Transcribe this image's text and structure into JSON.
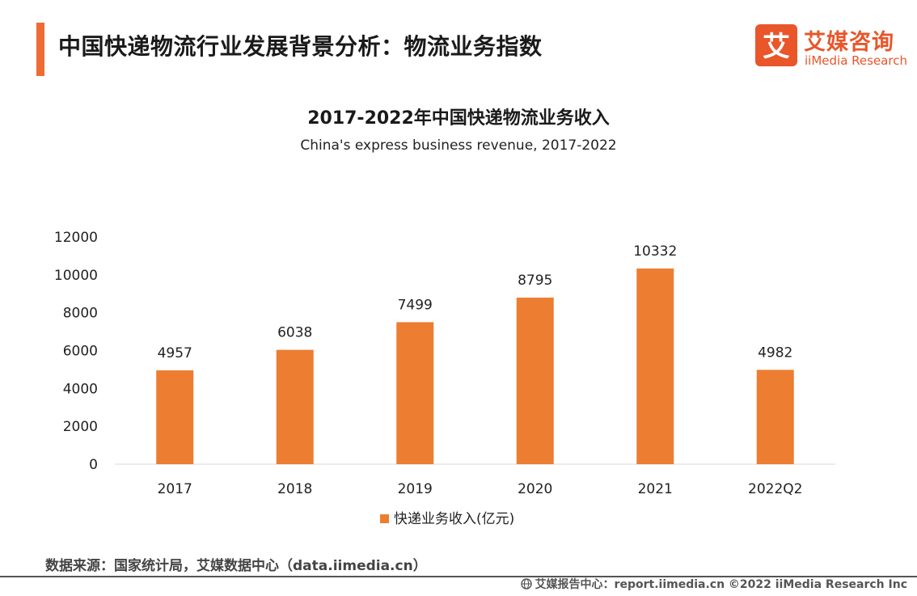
{
  "header": {
    "title": "中国快递物流行业发展背景分析：物流业务指数"
  },
  "logo": {
    "mark_char": "艾",
    "cn": "艾媒咨询",
    "en": "iiMedia Research",
    "color": "#e8562a"
  },
  "chart_data": {
    "type": "bar",
    "title": "2017-2022年中国快递物流业务收入",
    "subtitle": "China's express business revenue, 2017-2022",
    "categories": [
      "2017",
      "2018",
      "2019",
      "2020",
      "2021",
      "2022Q2"
    ],
    "series": [
      {
        "name": "快递业务收入(亿元)",
        "values": [
          4957,
          6038,
          7499,
          8795,
          10332,
          4982
        ],
        "color": "#ed7d31"
      }
    ],
    "ylim": [
      0,
      12000
    ],
    "yticks": [
      0,
      2000,
      4000,
      6000,
      8000,
      10000,
      12000
    ],
    "grid": false,
    "legend_position": "bottom",
    "data_labels": true
  },
  "source": "数据来源：国家统计局，艾媒数据中心（data.iimedia.cn）",
  "footer": {
    "globe_icon": "globe-icon",
    "text": "艾媒报告中心：report.iimedia.cn  ©2022  iiMedia Research  Inc"
  }
}
